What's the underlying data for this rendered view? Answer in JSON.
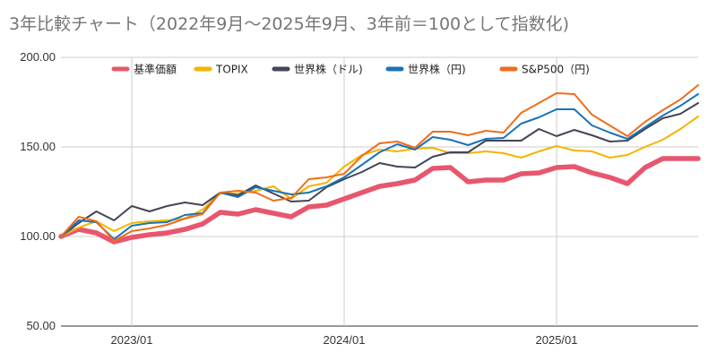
{
  "chart_data": {
    "type": "line",
    "title": "3年比較チャート（2022年9月～2025年9月、3年前＝100として指数化)",
    "xlabel": "",
    "ylabel": "",
    "ylim": [
      50,
      200
    ],
    "yticks": [
      "50.00",
      "100.00",
      "150.00",
      "200.00"
    ],
    "xticks": [
      {
        "label": "2023/01",
        "date": "2023-01"
      },
      {
        "label": "2024/01",
        "date": "2024-01"
      },
      {
        "label": "2025/01",
        "date": "2025-01"
      }
    ],
    "grid": true,
    "legend_position": "top",
    "x": [
      "2022-09",
      "2022-10",
      "2022-11",
      "2022-12",
      "2023-01",
      "2023-02",
      "2023-03",
      "2023-04",
      "2023-05",
      "2023-06",
      "2023-07",
      "2023-08",
      "2023-09",
      "2023-10",
      "2023-11",
      "2023-12",
      "2024-01",
      "2024-02",
      "2024-03",
      "2024-04",
      "2024-05",
      "2024-06",
      "2024-07",
      "2024-08",
      "2024-09",
      "2024-10",
      "2024-11",
      "2024-12",
      "2025-01",
      "2025-02",
      "2025-03",
      "2025-04",
      "2025-05",
      "2025-06",
      "2025-07",
      "2025-08",
      "2025-09"
    ],
    "series": [
      {
        "name": "基準価額",
        "color": "#e8566e",
        "width": 5.5,
        "values": [
          100,
          104,
          102,
          97,
          99.5,
          101,
          102,
          104,
          107,
          113.5,
          112.5,
          115,
          113,
          111,
          116.5,
          117.5,
          121,
          124.5,
          128,
          129.5,
          131.5,
          138,
          138.5,
          130.5,
          131.5,
          131.5,
          135,
          135.5,
          138.5,
          139,
          135.5,
          133,
          129.5,
          138.5,
          143.5,
          143.5,
          143.5
        ]
      },
      {
        "name": "TOPIX",
        "color": "#f4b400",
        "width": 2,
        "values": [
          100,
          105,
          108.5,
          103,
          107.5,
          108.5,
          109,
          110,
          115,
          124,
          124,
          125.5,
          128,
          121,
          128,
          130,
          139,
          145.5,
          148.5,
          147.5,
          149,
          149.5,
          146.5,
          146.5,
          147.5,
          146.5,
          144,
          147.5,
          150.5,
          148,
          147.5,
          144,
          145.5,
          150,
          154,
          160,
          167
        ]
      },
      {
        "name": "世界株（ドル)",
        "color": "#424656",
        "width": 2,
        "values": [
          100,
          107.5,
          114,
          109,
          117,
          114,
          117,
          119,
          117.5,
          124.5,
          123,
          128.5,
          124,
          119.5,
          120,
          127.5,
          132,
          136,
          141,
          139,
          138.5,
          144.5,
          147,
          147,
          153.5,
          153.5,
          153.5,
          160,
          156,
          159.5,
          156.5,
          153,
          153.5,
          160,
          166,
          168.5,
          174.5
        ]
      },
      {
        "name": "世界株（円)",
        "color": "#1a73b8",
        "width": 2,
        "values": [
          100,
          109,
          108,
          98.5,
          106,
          107.5,
          108,
          112,
          113,
          124.5,
          122,
          127.5,
          125.5,
          123.5,
          124.5,
          128,
          133,
          140,
          147,
          151.5,
          148.5,
          155.5,
          154,
          151,
          154.5,
          155,
          163,
          166.5,
          171,
          171,
          162,
          158,
          154.5,
          161,
          167.5,
          173,
          179.5
        ]
      },
      {
        "name": "S&P500（円)",
        "color": "#f06d1a",
        "width": 2,
        "values": [
          100,
          111,
          108.5,
          97.5,
          103,
          104.5,
          106.5,
          110,
          112.5,
          124.5,
          125.5,
          124.5,
          120,
          121.5,
          132,
          133,
          135,
          145,
          152,
          153,
          149.5,
          158.5,
          158.5,
          156.5,
          159,
          158,
          169,
          174.5,
          180,
          179.5,
          168,
          162,
          156,
          164,
          170.5,
          176.5,
          184.5
        ]
      }
    ]
  }
}
